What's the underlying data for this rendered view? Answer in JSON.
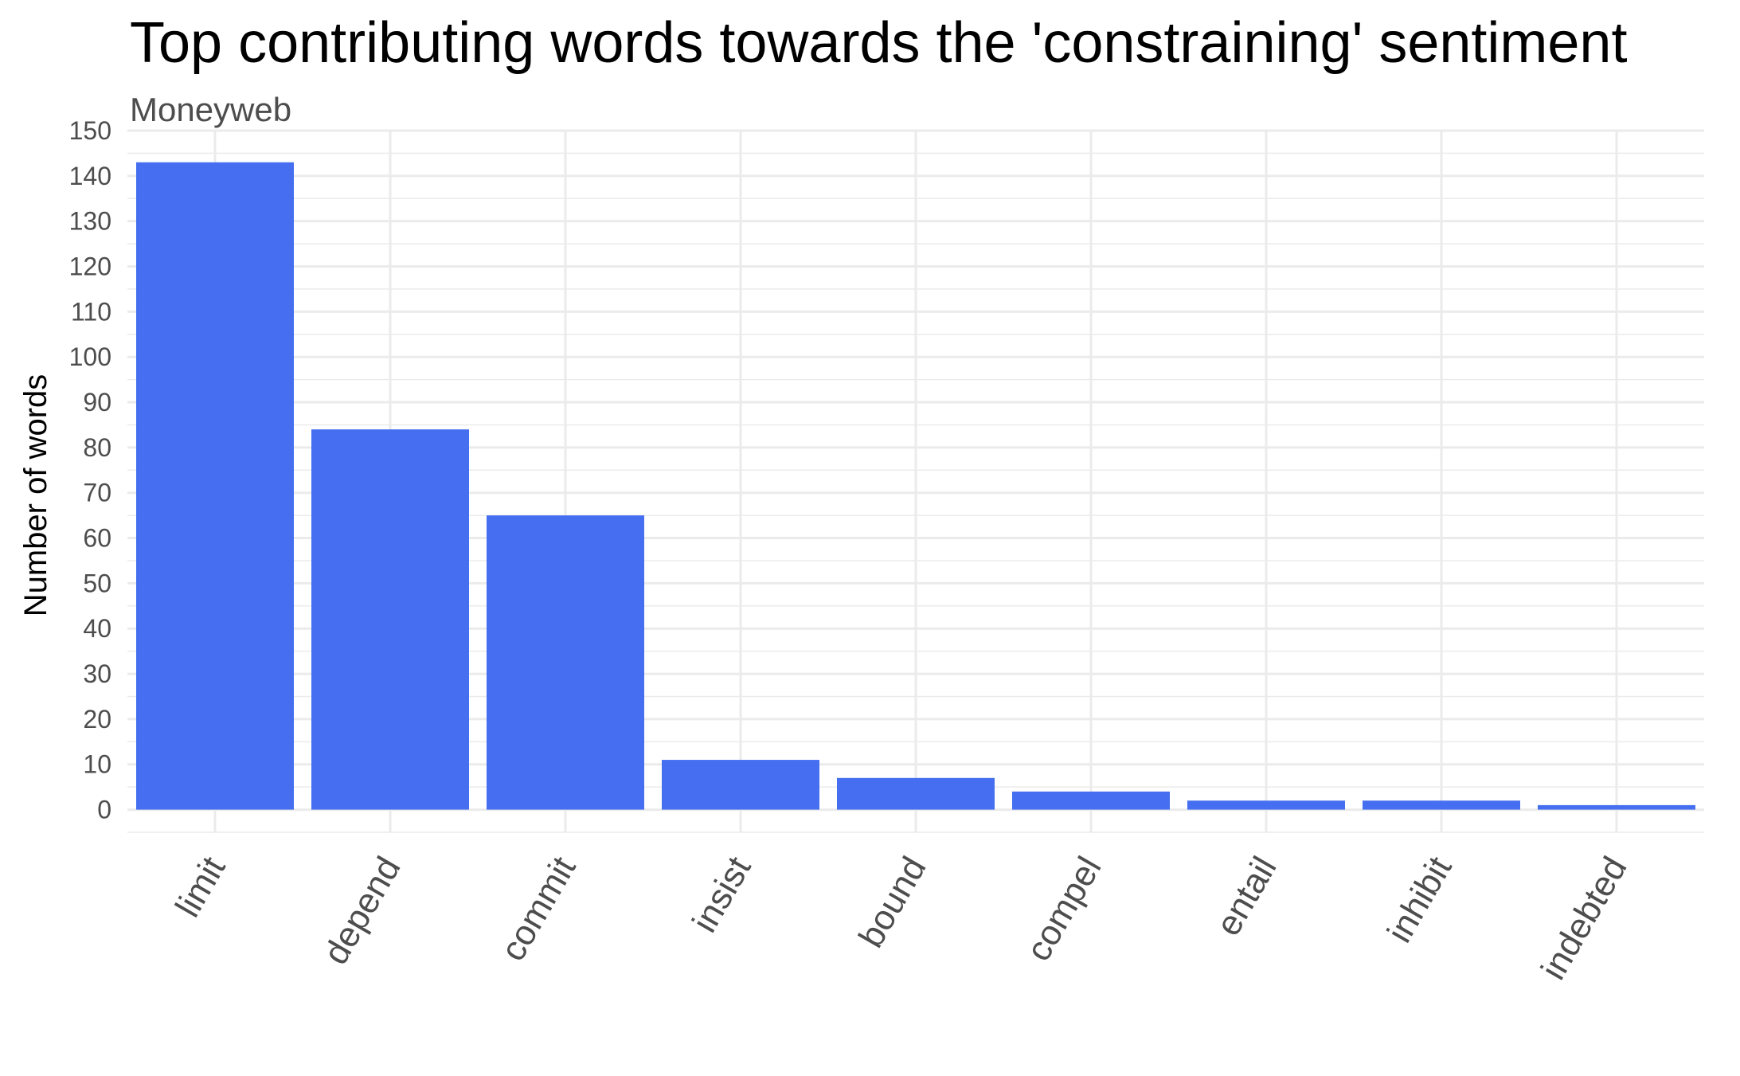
{
  "chart_data": {
    "type": "bar",
    "title": "Top contributing words towards the 'constraining' sentiment",
    "subtitle": "Moneyweb",
    "xlabel": "",
    "ylabel": "Number of words",
    "categories": [
      "limit",
      "depend",
      "commit",
      "insist",
      "bound",
      "compel",
      "entail",
      "inhibit",
      "indebted"
    ],
    "values": [
      143,
      84,
      65,
      11,
      7,
      4,
      2,
      2,
      1
    ],
    "ylim": [
      -5,
      150
    ],
    "yticks": [
      0,
      10,
      20,
      30,
      40,
      50,
      60,
      70,
      80,
      90,
      100,
      110,
      120,
      130,
      140,
      150
    ],
    "grid": true,
    "legend": "none",
    "bar_color": "#456ff0"
  }
}
